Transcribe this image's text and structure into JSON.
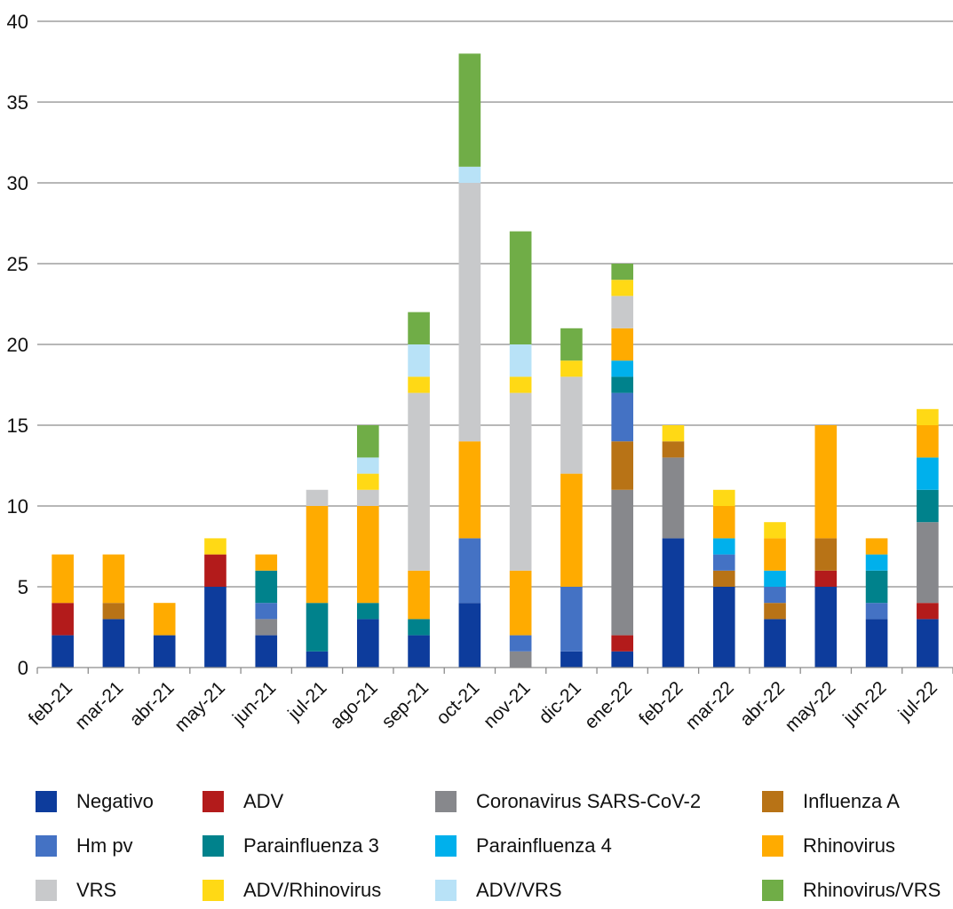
{
  "chart_data": {
    "type": "bar",
    "stacked": true,
    "title": "",
    "xlabel": "",
    "ylabel": "",
    "ylim": [
      0,
      40
    ],
    "yticks": [
      0,
      5,
      10,
      15,
      20,
      25,
      30,
      35,
      40
    ],
    "grid": true,
    "legend_position": "bottom",
    "categories": [
      "feb-21",
      "mar-21",
      "abr-21",
      "may-21",
      "jun-21",
      "jul-21",
      "ago-21",
      "sep-21",
      "oct-21",
      "nov-21",
      "dic-21",
      "ene-22",
      "feb-22",
      "mar-22",
      "abr-22",
      "may-22",
      "jun-22",
      "jul-22"
    ],
    "series": [
      {
        "name": "Negativo",
        "color": "#0d3c9c",
        "values": [
          2,
          3,
          2,
          5,
          2,
          1,
          3,
          2,
          4,
          0,
          1,
          1,
          8,
          5,
          3,
          5,
          3,
          3
        ]
      },
      {
        "name": "ADV",
        "color": "#b31b1b",
        "values": [
          2,
          0,
          0,
          2,
          0,
          0,
          0,
          0,
          0,
          0,
          0,
          1,
          0,
          0,
          0,
          1,
          0,
          1
        ]
      },
      {
        "name": "Coronavirus SARS-CoV-2",
        "color": "#87888c",
        "values": [
          0,
          0,
          0,
          0,
          1,
          0,
          0,
          0,
          0,
          1,
          0,
          9,
          5,
          0,
          0,
          0,
          0,
          5
        ]
      },
      {
        "name": "Influenza A",
        "color": "#b87316",
        "values": [
          0,
          1,
          0,
          0,
          0,
          0,
          0,
          0,
          0,
          0,
          0,
          3,
          1,
          1,
          1,
          2,
          0,
          0
        ]
      },
      {
        "name": "Hm pv",
        "color": "#4472c4",
        "values": [
          0,
          0,
          0,
          0,
          1,
          0,
          0,
          0,
          4,
          1,
          4,
          3,
          0,
          1,
          1,
          0,
          1,
          0
        ]
      },
      {
        "name": "Parainfluenza 3",
        "color": "#00828c",
        "values": [
          0,
          0,
          0,
          0,
          2,
          3,
          1,
          1,
          0,
          0,
          0,
          1,
          0,
          0,
          0,
          0,
          2,
          2
        ]
      },
      {
        "name": "Parainfluenza 4",
        "color": "#00b0ec",
        "values": [
          0,
          0,
          0,
          0,
          0,
          0,
          0,
          0,
          0,
          0,
          0,
          1,
          0,
          1,
          1,
          0,
          1,
          2
        ]
      },
      {
        "name": "Rhinovirus",
        "color": "#ffab00",
        "values": [
          3,
          3,
          2,
          0,
          1,
          6,
          6,
          3,
          6,
          4,
          7,
          2,
          0,
          2,
          2,
          7,
          1,
          2
        ]
      },
      {
        "name": "VRS",
        "color": "#c8c9cb",
        "values": [
          0,
          0,
          0,
          0,
          0,
          1,
          1,
          11,
          16,
          11,
          6,
          2,
          0,
          0,
          0,
          0,
          0,
          0
        ]
      },
      {
        "name": "ADV/Rhinovirus",
        "color": "#ffd915",
        "values": [
          0,
          0,
          0,
          1,
          0,
          0,
          1,
          1,
          0,
          1,
          1,
          1,
          1,
          1,
          1,
          0,
          0,
          1
        ]
      },
      {
        "name": "ADV/VRS",
        "color": "#b8e2f7",
        "values": [
          0,
          0,
          0,
          0,
          0,
          0,
          1,
          2,
          1,
          2,
          0,
          0,
          0,
          0,
          0,
          0,
          0,
          0
        ]
      },
      {
        "name": "Rhinovirus/VRS",
        "color": "#70ad47",
        "values": [
          0,
          0,
          0,
          0,
          0,
          0,
          2,
          2,
          7,
          7,
          2,
          1,
          0,
          0,
          0,
          0,
          0,
          0
        ]
      }
    ],
    "totals": [
      7,
      7,
      4,
      8,
      7,
      11,
      15,
      22,
      38,
      27,
      21,
      25,
      15,
      11,
      9,
      15,
      8,
      16
    ]
  },
  "legend": {
    "rows": [
      [
        "Negativo",
        "ADV",
        "Coronavirus SARS-CoV-2",
        "Influenza A"
      ],
      [
        "Hm pv",
        "Parainfluenza 3",
        "Parainfluenza 4",
        "Rhinovirus"
      ],
      [
        "VRS",
        "ADV/Rhinovirus",
        "ADV/VRS",
        "Rhinovirus/VRS"
      ]
    ]
  }
}
